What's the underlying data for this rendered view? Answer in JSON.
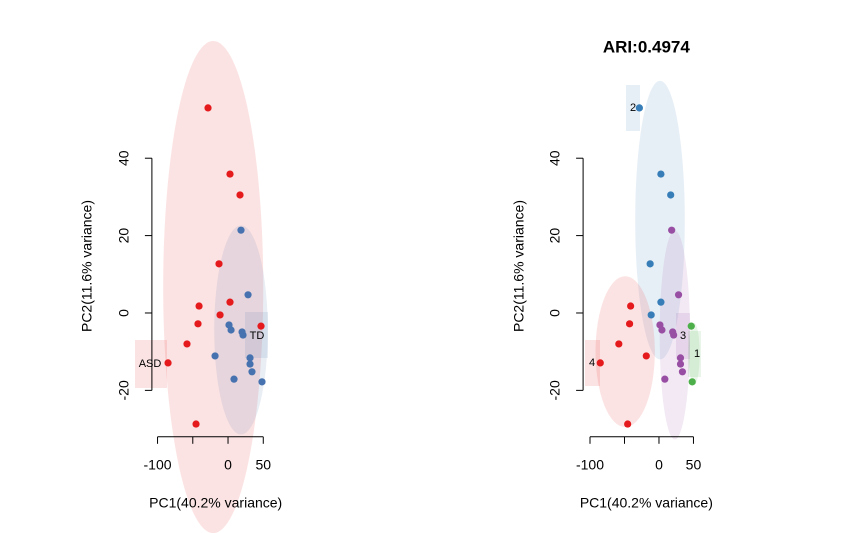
{
  "chart_data": [
    {
      "type": "scatter",
      "xlabel": "PC1(40.2% variance)",
      "ylabel": "PC2(11.6% variance)",
      "xlim": [
        -108,
        56
      ],
      "ylim": [
        -32,
        56
      ],
      "xticks": [
        -100,
        {
          "value": -50,
          "label": null
        },
        0,
        50
      ],
      "yticks": [
        -20,
        0,
        20,
        40
      ],
      "series": [
        {
          "name": "ASD",
          "color": "#e41a1c",
          "x": [
            -28.4,
            2.8,
            17.0,
            -12.8,
            2.8,
            -41.1,
            -11.3,
            -42.6,
            -58.2,
            -85.1,
            -45.4,
            46.8
          ],
          "values": [
            53.0,
            35.9,
            30.5,
            12.7,
            2.8,
            1.8,
            -0.5,
            -2.8,
            -8.0,
            -12.9,
            -28.7,
            -3.4
          ],
          "ellipse": {
            "cx": -21,
            "cy": 6.7,
            "rx": 71,
            "ry": 63.6
          }
        },
        {
          "name": "TD",
          "color": "#4672b0",
          "x": [
            18.4,
            28.4,
            1.4,
            4.3,
            19.9,
            21.3,
            -18.4,
            31.2,
            31.2,
            34.0,
            8.5,
            48.2
          ],
          "values": [
            21.4,
            4.7,
            -3.1,
            -4.4,
            -4.9,
            -5.7,
            -11.1,
            -11.6,
            -13.2,
            -15.2,
            -17.1,
            -17.8
          ],
          "ellipse": {
            "cx": 18.4,
            "cy": -4.4,
            "rx": 38,
            "ry": 27
          }
        }
      ]
    },
    {
      "type": "scatter",
      "title": "ARI:0.4974",
      "xlabel": "PC1(40.2% variance)",
      "ylabel": "PC2(11.6% variance)",
      "xlim": [
        -110,
        56
      ],
      "ylim": [
        -32,
        56
      ],
      "xticks": [
        -100,
        {
          "value": -50,
          "label": null
        },
        0,
        50
      ],
      "yticks": [
        -20,
        0,
        20,
        40
      ],
      "series": [
        {
          "name": "1",
          "color": "#4daf4a",
          "x": [
            46.8,
            48.2
          ],
          "values": [
            -3.4,
            -17.8
          ],
          "ellipse": {
            "cx": 51,
            "cy": -10.6,
            "rx": 8,
            "ry": 8
          }
        },
        {
          "name": "2",
          "color": "#377eb8",
          "x": [
            -28.4,
            2.8,
            17.0,
            -12.8,
            2.8,
            -11.3
          ],
          "values": [
            53.0,
            35.9,
            30.5,
            12.7,
            2.8,
            -0.5
          ],
          "ellipse": {
            "cx": 1.5,
            "cy": 24,
            "rx": 36,
            "ry": 36
          }
        },
        {
          "name": "3",
          "color": "#984ea3",
          "x": [
            18.4,
            28.4,
            1.4,
            4.3,
            19.9,
            21.3,
            31.2,
            31.2,
            34.0,
            8.5
          ],
          "values": [
            21.4,
            4.7,
            -3.1,
            -4.4,
            -4.9,
            -5.7,
            -11.6,
            -13.2,
            -15.2,
            -17.1
          ],
          "ellipse": {
            "cx": 23,
            "cy": -5.7,
            "rx": 22,
            "ry": 27
          }
        },
        {
          "name": "4",
          "color": "#e41a1c",
          "x": [
            -41.1,
            -42.6,
            -58.2,
            -85.1,
            -45.4,
            -18.4
          ],
          "values": [
            1.8,
            -2.8,
            -8.0,
            -12.9,
            -28.7,
            -11.1
          ],
          "ellipse": {
            "cx": -49,
            "cy": -10,
            "rx": 43,
            "ry": 19.5
          }
        }
      ]
    }
  ]
}
